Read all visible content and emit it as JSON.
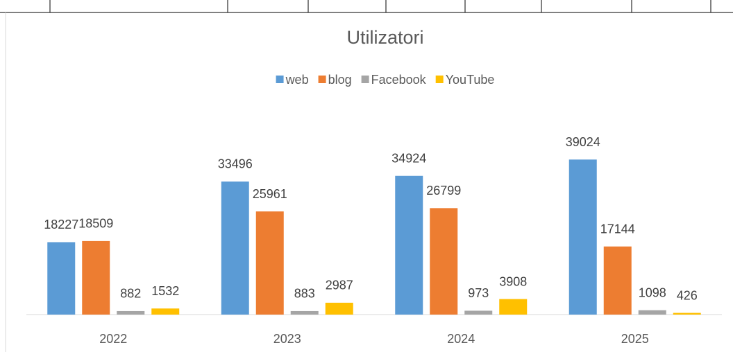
{
  "chart_data": {
    "type": "bar",
    "title": "Utilizatori",
    "categories": [
      "2022",
      "2023",
      "2024",
      "2025"
    ],
    "series": [
      {
        "name": "web",
        "color": "#5b9bd5",
        "values": [
          18227,
          33496,
          34924,
          39024
        ]
      },
      {
        "name": "blog",
        "color": "#ed7d31",
        "values": [
          18509,
          25961,
          26799,
          17144
        ]
      },
      {
        "name": "Facebook",
        "color": "#a5a5a5",
        "values": [
          882,
          883,
          973,
          1098
        ]
      },
      {
        "name": "YouTube",
        "color": "#ffc000",
        "values": [
          1532,
          2987,
          3908,
          426
        ]
      }
    ],
    "ylim": [
      0,
      45000
    ],
    "legend": "top"
  }
}
